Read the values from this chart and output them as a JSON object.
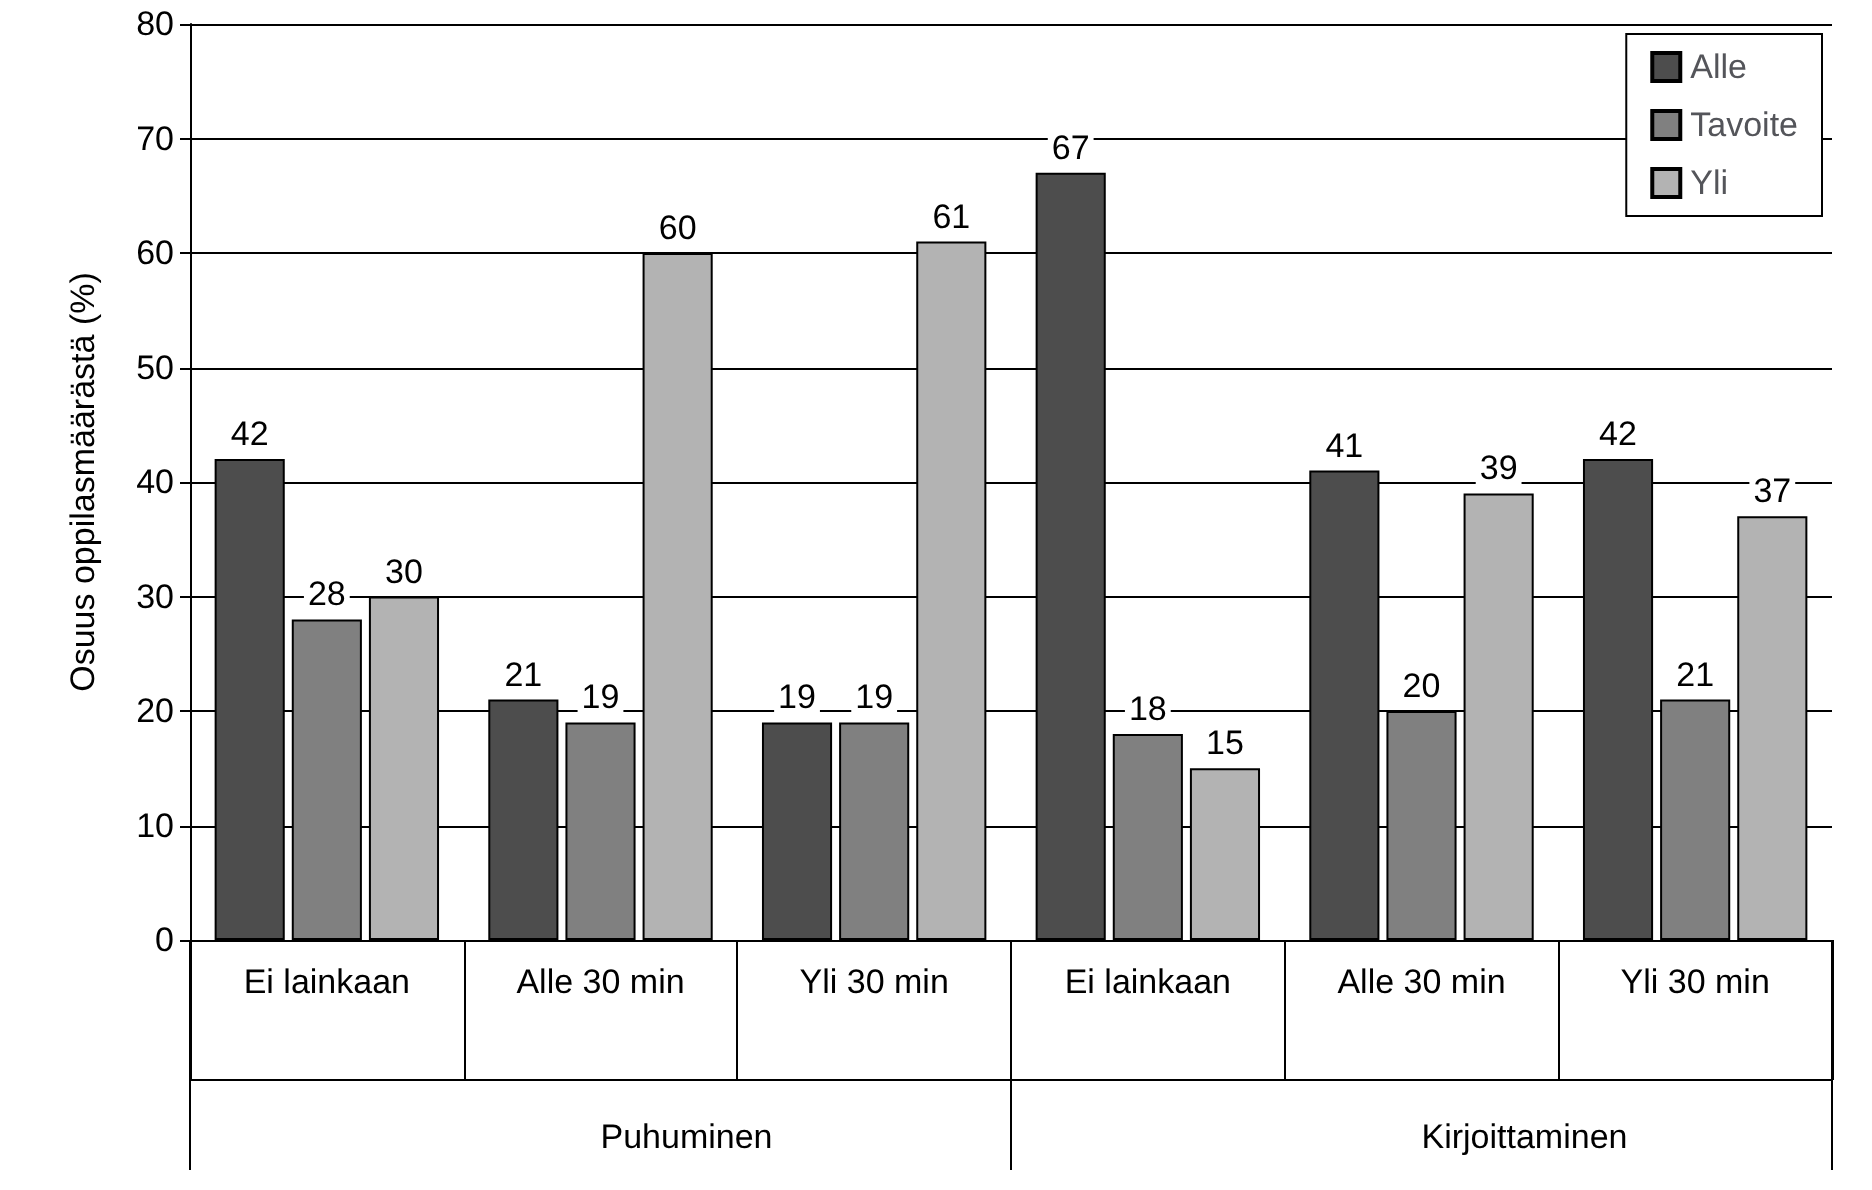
{
  "chart_data": {
    "type": "bar",
    "ylabel": "Osuus oppilasmäärästä (%)",
    "categories": [
      "Ei lainkaan",
      "Alle 30 min",
      "Yli 30 min",
      "Ei lainkaan",
      "Alle 30 min",
      "Yli 30 min"
    ],
    "series": [
      {
        "name": "Alle",
        "color": "#4d4d4d",
        "values": [
          42,
          21,
          19,
          67,
          41,
          42
        ]
      },
      {
        "name": "Tavoite",
        "color": "#808080",
        "values": [
          28,
          19,
          19,
          18,
          20,
          21
        ]
      },
      {
        "name": "Yli",
        "color": "#b3b3b3",
        "values": [
          30,
          60,
          61,
          15,
          39,
          37
        ]
      }
    ],
    "annotations": [
      "Puhuminen",
      "Kirjoittaminen"
    ],
    "ylim": [
      0,
      80
    ],
    "yticks": [
      0,
      10,
      20,
      30,
      40,
      50,
      60,
      70,
      80
    ],
    "grid": true,
    "legend": "top right",
    "data_labels": true
  }
}
